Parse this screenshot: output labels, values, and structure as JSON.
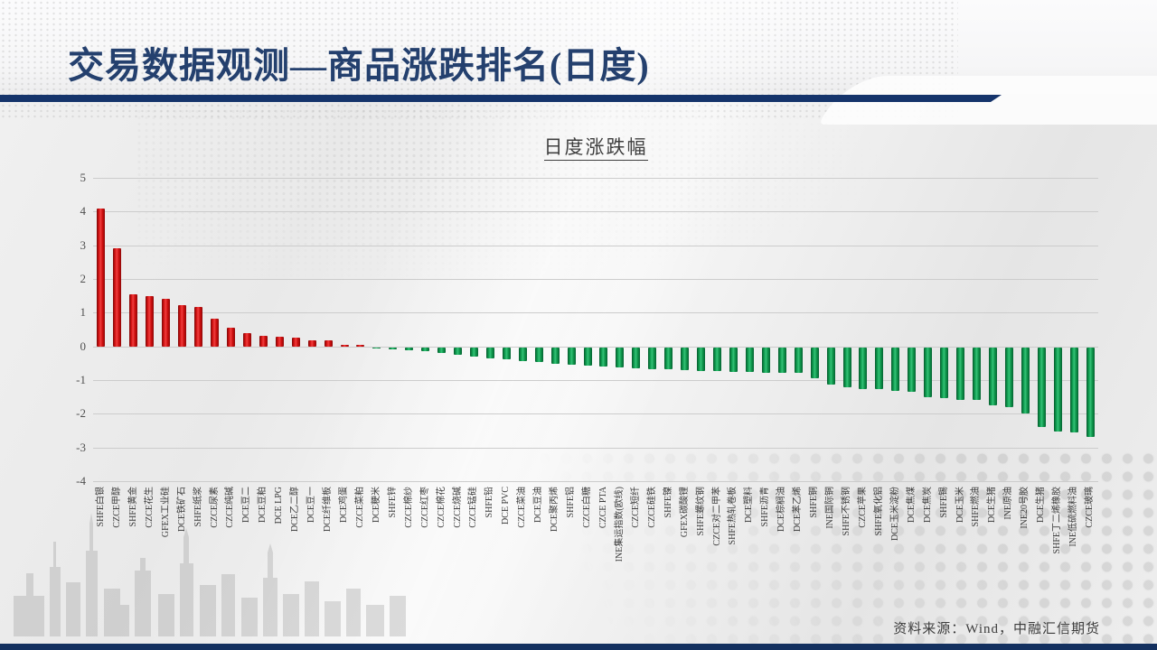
{
  "page": {
    "title": "交易数据观测—商品涨跌排名(日度)",
    "source_note": "资料来源：Wind，中融汇信期货"
  },
  "colors": {
    "title_blue": "#24406e",
    "divider_blue": "#15346b",
    "positive_bar": "#cc1111",
    "negative_bar": "#0e9a4c",
    "gridline": "#cccccc"
  },
  "chart_data": {
    "type": "bar",
    "title": "日度涨跌幅",
    "xlabel": "",
    "ylabel": "",
    "ylim": [
      -4,
      5
    ],
    "yticks": [
      5,
      4,
      3,
      2,
      1,
      0,
      -1,
      -2,
      -3,
      -4
    ],
    "grid": true,
    "legend": "none",
    "categories": [
      "SHFE白银",
      "CZCE甲醇",
      "SHFE黄金",
      "CZCE花生",
      "GFEX工业硅",
      "DCE铁矿石",
      "SHFE纸浆",
      "CZCE尿素",
      "CZCE纯碱",
      "DCE豆二",
      "DCE豆粕",
      "DCE LPG",
      "DCE乙二醇",
      "DCE豆一",
      "DCE纤维板",
      "DCE鸡蛋",
      "CZCE菜粕",
      "DCE粳米",
      "SHFE锌",
      "CZCE棉纱",
      "CZCE红枣",
      "CZCE棉花",
      "CZCE烧碱",
      "CZCE锰硅",
      "SHFE铅",
      "DCE PVC",
      "CZCE菜油",
      "DCE豆油",
      "DCE聚丙烯",
      "SHFE铝",
      "CZCE白糖",
      "CZCE PTA",
      "INE集运指数(欧线)",
      "CZCE短纤",
      "CZCE硅铁",
      "SHFE镍",
      "GFEX碳酸锂",
      "SHFE螺纹钢",
      "CZCE对二甲苯",
      "SHFE热轧卷板",
      "DCE塑料",
      "SHFE沥青",
      "DCE棕榈油",
      "DCE苯乙烯",
      "SHFE铜",
      "INE国际铜",
      "SHFE不锈钢",
      "CZCE苹果",
      "SHFE氧化铝",
      "DCE玉米淀粉",
      "DCE焦煤",
      "DCE焦炭",
      "SHFE锡",
      "DCE玉米",
      "SHFE燃油",
      "DCE生猪",
      "INE原油",
      "INE20号胶",
      "DCE生猪",
      "SHFE丁二烯橡胶",
      "INE低硫燃料油",
      "CZCE玻璃"
    ],
    "values": [
      4.08,
      2.9,
      1.54,
      1.5,
      1.4,
      1.22,
      1.16,
      0.83,
      0.56,
      0.4,
      0.32,
      0.29,
      0.26,
      0.19,
      0.17,
      0.05,
      0.02,
      -0.02,
      -0.05,
      -0.08,
      -0.12,
      -0.16,
      -0.22,
      -0.28,
      -0.32,
      -0.36,
      -0.4,
      -0.44,
      -0.48,
      -0.51,
      -0.54,
      -0.57,
      -0.6,
      -0.62,
      -0.64,
      -0.66,
      -0.68,
      -0.7,
      -0.71,
      -0.72,
      -0.74,
      -0.75,
      -0.75,
      -0.76,
      -0.93,
      -1.11,
      -1.2,
      -1.24,
      -1.24,
      -1.29,
      -1.33,
      -1.47,
      -1.51,
      -1.55,
      -1.55,
      -1.73,
      -1.78,
      -1.96,
      -2.36,
      -2.49,
      -2.54,
      -2.67
    ]
  }
}
